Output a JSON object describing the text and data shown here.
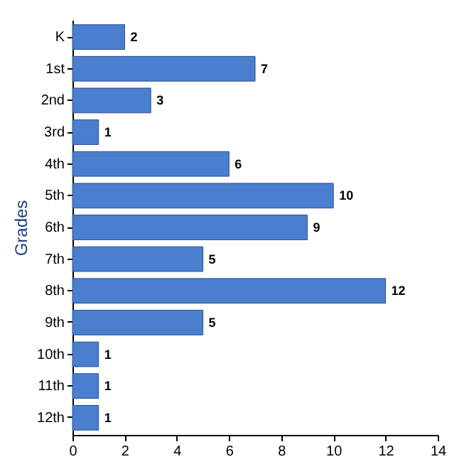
{
  "chart_data": {
    "type": "bar",
    "orientation": "horizontal",
    "ylabel": "Grades",
    "categories": [
      "K",
      "1st",
      "2nd",
      "3rd",
      "4th",
      "5th",
      "6th",
      "7th",
      "8th",
      "9th",
      "10th",
      "11th",
      "12th"
    ],
    "values": [
      2,
      7,
      3,
      1,
      6,
      10,
      9,
      5,
      12,
      5,
      1,
      1,
      1
    ],
    "color": "#4a7ecf",
    "xlim": [
      0,
      14
    ],
    "xticks": [
      0,
      2,
      4,
      6,
      8,
      10,
      12,
      14
    ],
    "data_labels": true,
    "grid": false
  }
}
